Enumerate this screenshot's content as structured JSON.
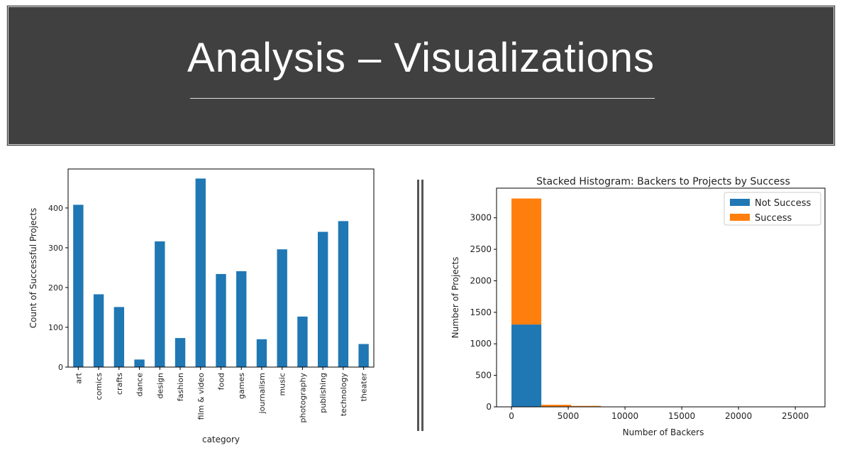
{
  "slide": {
    "title": "Analysis – Visualizations",
    "banner_color": "#404040"
  },
  "chart_data": [
    {
      "type": "bar",
      "title": "",
      "xlabel": "category",
      "ylabel": "Count of Successful Projects",
      "categories": [
        "art",
        "comics",
        "crafts",
        "dance",
        "design",
        "fashion",
        "film & video",
        "food",
        "games",
        "journalism",
        "music",
        "photography",
        "publishing",
        "technology",
        "theater"
      ],
      "values": [
        408,
        183,
        151,
        19,
        316,
        73,
        474,
        234,
        241,
        70,
        296,
        127,
        340,
        367,
        58
      ],
      "yticks": [
        0,
        100,
        200,
        300,
        400
      ],
      "ylim": [
        0,
        498
      ],
      "color": "#1f77b4",
      "grid": false
    },
    {
      "type": "bar",
      "stacked": true,
      "title": "Stacked Histogram:  Backers to Projects by Success",
      "xlabel": "Number of Backers",
      "ylabel": "Number of Projects",
      "bin_edges": [
        0,
        2630,
        5260,
        7890,
        10520,
        13150,
        15780,
        18410,
        21040,
        23670,
        26300
      ],
      "series": [
        {
          "name": "Not Success",
          "color": "#1f77b4",
          "values": [
            1306,
            3,
            1,
            0,
            0,
            0,
            0,
            0,
            0,
            0
          ]
        },
        {
          "name": "Success",
          "color": "#ff7f0e",
          "values": [
            2000,
            30,
            14,
            5,
            3,
            2,
            2,
            1,
            1,
            1
          ]
        }
      ],
      "xticks": [
        0,
        5000,
        10000,
        15000,
        20000,
        25000
      ],
      "yticks": [
        0,
        500,
        1000,
        1500,
        2000,
        2500,
        3000
      ],
      "xlim": [
        -1315,
        27615
      ],
      "ylim": [
        0,
        3470
      ],
      "legend": "top-right",
      "grid": false
    }
  ]
}
